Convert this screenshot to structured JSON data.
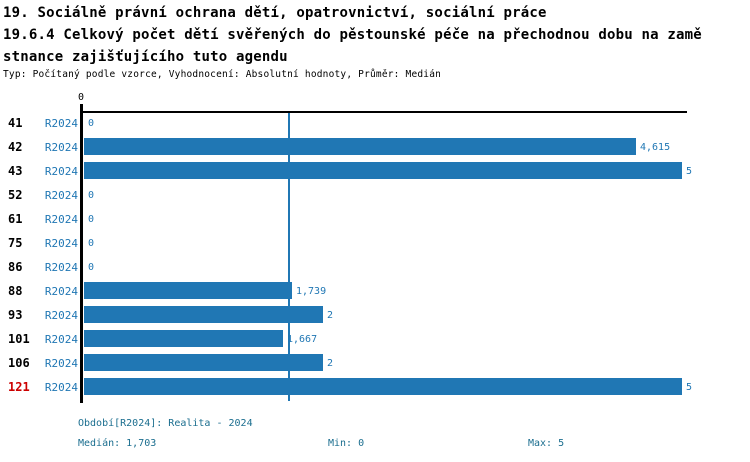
{
  "header": {
    "title_line1": "19. Sociálně právní ochrana dětí, opatrovnictví, sociální práce",
    "title_line2": "19.6.4 Celkový počet dětí svěřených do pěstounské péče na přechodnou dobu na zamě",
    "title_line3": "stnance zajišťujícího tuto agendu",
    "subtitle": "Typ: Počítaný podle vzorce, Vyhodnocení: Absolutní hodnoty, Průměr: Medián"
  },
  "chart_data": {
    "type": "bar",
    "orientation": "horizontal",
    "title": "19.6.4 Celkový počet dětí svěřených do pěstounské péče na přechodnou dobu na zaměstnance zajišťujícího tuto agendu",
    "xlabel": "",
    "ylabel": "",
    "xlim": [
      0,
      5
    ],
    "axis_zero_tick_label": "0",
    "grid": false,
    "legend_position": "none",
    "series_label": "R2024",
    "median_value": 1.703,
    "categories": [
      "41",
      "42",
      "43",
      "52",
      "61",
      "75",
      "86",
      "88",
      "93",
      "101",
      "106",
      "121"
    ],
    "values": [
      0,
      4.615,
      5,
      0,
      0,
      0,
      0,
      1.739,
      2,
      1.667,
      2,
      5
    ],
    "rows": [
      {
        "id": "41",
        "period": "R2024",
        "value": 0,
        "value_label": "0",
        "highlight": false
      },
      {
        "id": "42",
        "period": "R2024",
        "value": 4.615,
        "value_label": "4,615",
        "highlight": false
      },
      {
        "id": "43",
        "period": "R2024",
        "value": 5,
        "value_label": "5",
        "highlight": false
      },
      {
        "id": "52",
        "period": "R2024",
        "value": 0,
        "value_label": "0",
        "highlight": false
      },
      {
        "id": "61",
        "period": "R2024",
        "value": 0,
        "value_label": "0",
        "highlight": false
      },
      {
        "id": "75",
        "period": "R2024",
        "value": 0,
        "value_label": "0",
        "highlight": false
      },
      {
        "id": "86",
        "period": "R2024",
        "value": 0,
        "value_label": "0",
        "highlight": false
      },
      {
        "id": "88",
        "period": "R2024",
        "value": 1.739,
        "value_label": "1,739",
        "highlight": false
      },
      {
        "id": "93",
        "period": "R2024",
        "value": 2,
        "value_label": "2",
        "highlight": false
      },
      {
        "id": "101",
        "period": "R2024",
        "value": 1.667,
        "value_label": "1,667",
        "highlight": false
      },
      {
        "id": "106",
        "period": "R2024",
        "value": 2,
        "value_label": "2",
        "highlight": false
      },
      {
        "id": "121",
        "period": "R2024",
        "value": 5,
        "value_label": "5",
        "highlight": true
      }
    ]
  },
  "footer": {
    "period": "Období[R2024]: Realita - 2024",
    "median": "Medián: 1,703",
    "min": "Min: 0",
    "max": "Max: 5"
  },
  "colors": {
    "bar": "#2077b4",
    "period_text": "#2077b4",
    "value_text": "#2077b4",
    "median_line": "#2077b4",
    "footer_text": "#1b6e8f",
    "row_label": "#000000",
    "row_label_highlight": "#cc0000",
    "axis": "#000000"
  }
}
